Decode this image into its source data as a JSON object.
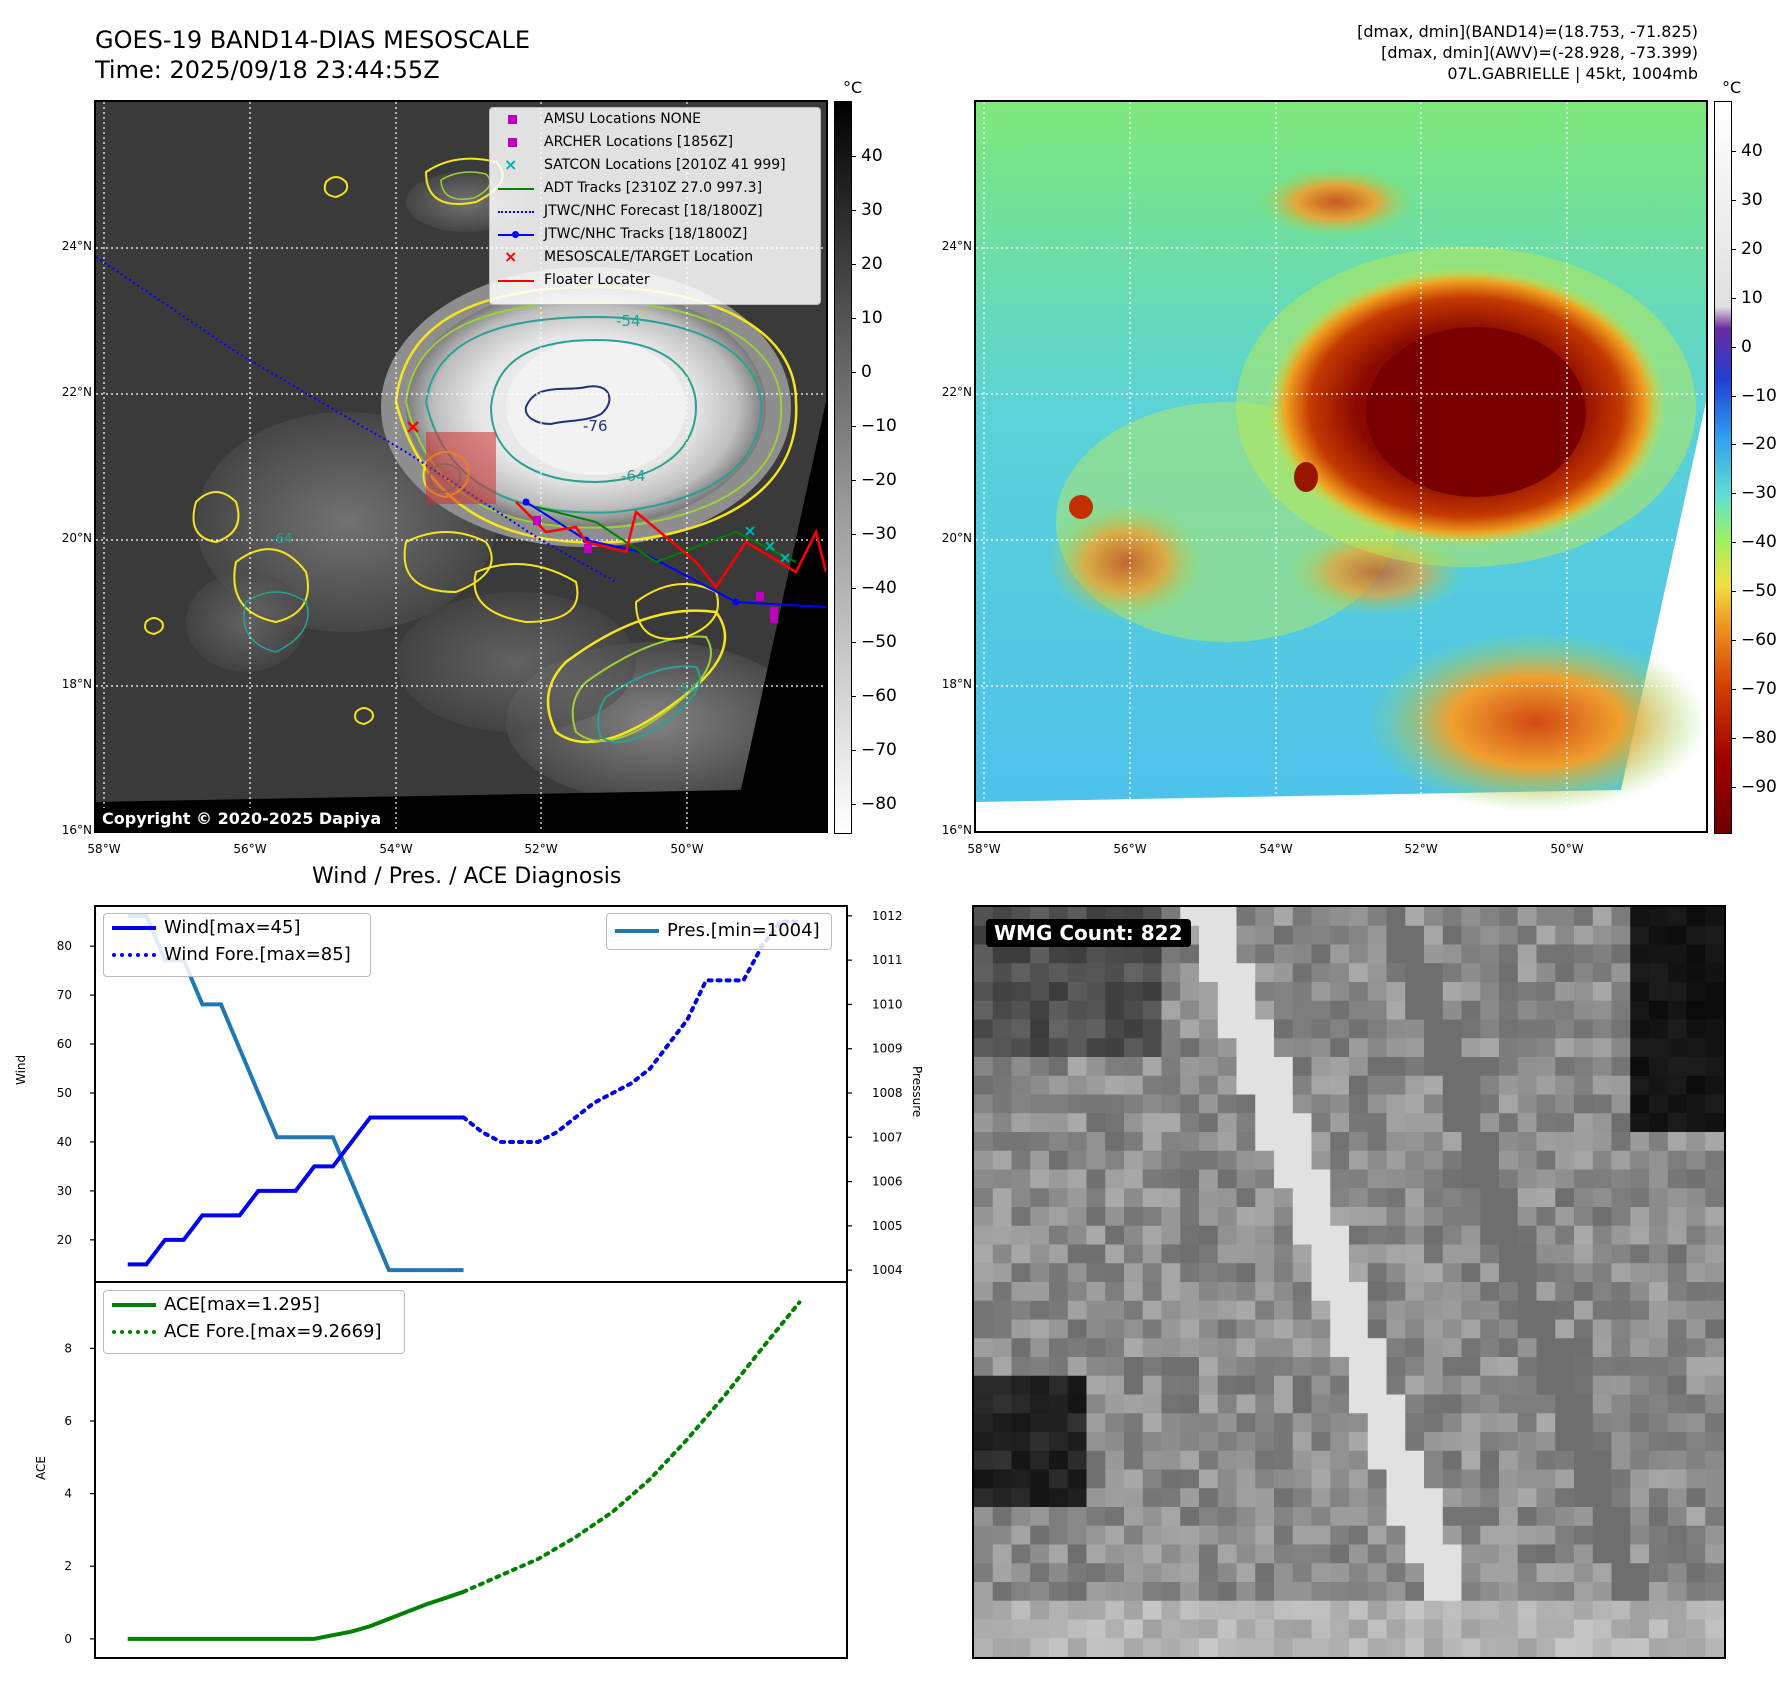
{
  "header": {
    "title_line1": "GOES-19 BAND14-DIAS MESOSCALE",
    "title_line2": "Time: 2025/09/18 23:44:55Z",
    "info_line1": "[dmax, dmin](BAND14)=(18.753, -71.825)",
    "info_line2": "[dmax, dmin](AWV)=(-28.928, -73.399)",
    "info_line3": "07L.GABRIELLE | 45kt, 1004mb"
  },
  "map": {
    "lon_labels": [
      "58°W",
      "56°W",
      "54°W",
      "52°W",
      "50°W"
    ],
    "lat_labels": [
      "24°N",
      "22°N",
      "20°N",
      "18°N",
      "16°N"
    ],
    "copyright": "Copyright © 2020-2025 Dapiya",
    "contour_labels": [
      "-54",
      "-64",
      "-76",
      "-54",
      "-64"
    ],
    "legend": [
      {
        "label": "AMSU Locations NONE",
        "color": "#c000c0",
        "kind": "square"
      },
      {
        "label": "ARCHER Locations [1856Z]",
        "color": "#c000c0",
        "kind": "square"
      },
      {
        "label": "SATCON Locations [2010Z 41 999]",
        "color": "#00b0b0",
        "kind": "x"
      },
      {
        "label": "ADT Tracks [2310Z 27.0 997.3]",
        "color": "#008000",
        "kind": "line"
      },
      {
        "label": "JTWC/NHC Forecast [18/1800Z]",
        "color": "#0000ff",
        "kind": "dotted"
      },
      {
        "label": "JTWC/NHC Tracks [18/1800Z]",
        "color": "#0000ff",
        "kind": "line-dot"
      },
      {
        "label": "MESOSCALE/TARGET Location",
        "color": "#ff0000",
        "kind": "x"
      },
      {
        "label": "Floater Locater",
        "color": "#ff0000",
        "kind": "line"
      }
    ]
  },
  "colorbar_gray": {
    "unit": "°C",
    "ticks": [
      "40",
      "30",
      "20",
      "10",
      "0",
      "−10",
      "−20",
      "−30",
      "−40",
      "−50",
      "−60",
      "−70",
      "−80"
    ]
  },
  "colorbar_color": {
    "unit": "°C",
    "ticks": [
      "40",
      "30",
      "20",
      "10",
      "0",
      "−10",
      "−20",
      "−30",
      "−40",
      "−50",
      "−60",
      "−70",
      "−80",
      "−90"
    ]
  },
  "wmg": {
    "badge": "WMG Count: 822"
  },
  "colors": {
    "wind": "#0000ee",
    "pres": "#1f77b4",
    "ace": "#008000"
  },
  "chart_data": [
    {
      "type": "line",
      "title": "Wind / Pres. / ACE Diagnosis",
      "ylabel": "Wind",
      "ylabel_right": "Pressure",
      "ylim": [
        12,
        88
      ],
      "ylim_right": [
        1003.8,
        1012.2
      ],
      "yticks": [
        20,
        30,
        40,
        50,
        60,
        70,
        80
      ],
      "yticks_right": [
        1004,
        1005,
        1006,
        1007,
        1008,
        1009,
        1010,
        1011,
        1012
      ],
      "x": [
        0,
        1,
        2,
        3,
        4,
        5,
        6,
        7,
        8,
        9,
        10,
        11,
        12,
        13,
        14,
        15,
        16,
        17,
        18,
        19,
        20,
        21,
        22,
        23,
        24,
        25,
        26,
        27,
        28,
        29,
        30,
        31,
        32,
        33,
        34,
        35,
        36
      ],
      "xlim": [
        -1.7,
        38.5
      ],
      "series": [
        {
          "name": "Wind[max=45]",
          "style": "solid",
          "axis": "left",
          "x": [
            0,
            1,
            2,
            3,
            4,
            5,
            6,
            7,
            8,
            9,
            10,
            11,
            12,
            13,
            14,
            15,
            16,
            17,
            18
          ],
          "values": [
            15,
            15,
            20,
            20,
            25,
            25,
            25,
            30,
            30,
            30,
            35,
            35,
            40,
            45,
            45,
            45,
            45,
            45,
            45
          ]
        },
        {
          "name": "Wind Fore.[max=85]",
          "style": "dotted",
          "axis": "left",
          "x": [
            18,
            19,
            20,
            21,
            22,
            23,
            24,
            25,
            26,
            27,
            28,
            29,
            30,
            31,
            32,
            33,
            34,
            35,
            36
          ],
          "values": [
            45,
            42,
            40,
            40,
            40,
            42,
            45,
            48,
            50,
            52,
            55,
            60,
            65,
            73,
            73,
            73,
            80,
            85,
            85
          ]
        },
        {
          "name": "Pres.[min=1004]",
          "style": "solid",
          "axis": "right",
          "x": [
            0,
            1,
            2,
            3,
            4,
            5,
            6,
            7,
            8,
            9,
            10,
            11,
            12,
            13,
            14,
            15,
            16,
            17,
            18
          ],
          "values": [
            1012,
            1012,
            1011,
            1011,
            1010,
            1010,
            1009,
            1008,
            1007,
            1007,
            1007,
            1007,
            1006,
            1005,
            1004,
            1004,
            1004,
            1004,
            1004
          ]
        }
      ]
    },
    {
      "type": "line",
      "ylabel": "ACE",
      "ylim": [
        -0.5,
        9.8
      ],
      "yticks": [
        0,
        2,
        4,
        6,
        8
      ],
      "xlim": [
        -1.7,
        38.5
      ],
      "series": [
        {
          "name": "ACE[max=1.295]",
          "style": "solid",
          "x": [
            0,
            2,
            4,
            6,
            8,
            10,
            11,
            12,
            13,
            14,
            15,
            16,
            17,
            18
          ],
          "values": [
            0,
            0,
            0,
            0,
            0,
            0,
            0.1,
            0.2,
            0.35,
            0.55,
            0.75,
            0.95,
            1.12,
            1.295
          ]
        },
        {
          "name": "ACE Fore.[max=9.2669]",
          "style": "dotted",
          "x": [
            18,
            20,
            22,
            24,
            26,
            28,
            30,
            32,
            34,
            36
          ],
          "values": [
            1.295,
            1.75,
            2.2,
            2.8,
            3.5,
            4.4,
            5.5,
            6.7,
            8.0,
            9.2669
          ]
        }
      ]
    }
  ]
}
